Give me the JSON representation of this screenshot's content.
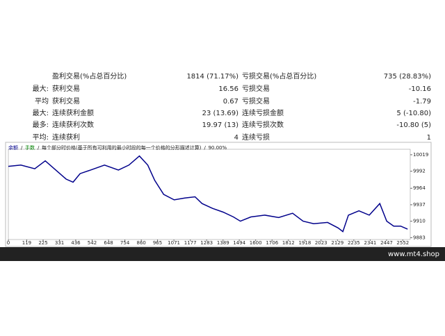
{
  "table": {
    "rows": [
      [
        "盈利交易(%占总百分比)",
        "1814 (71.17%)",
        "亏损交易(%占总百分比)",
        "735 (28.83%)"
      ],
      [
        "最大:",
        "获利交易",
        "16.56",
        "亏损交易",
        "-10.16"
      ],
      [
        "平均",
        "获利交易",
        "0.67",
        "亏损交易",
        "-1.79"
      ],
      [
        "最大:",
        "连续获利金额",
        "23 (13.69)",
        "连续亏损金额",
        "5 (-10.80)"
      ],
      [
        "最多:",
        "连续获利次数",
        "19.97 (13)",
        "连续亏损次数",
        "-10.80 (5)"
      ],
      [
        "平均:",
        "连续获利",
        "4",
        "连续亏损",
        "1"
      ]
    ]
  },
  "chart_data": {
    "type": "line",
    "legend": [
      "余额",
      "手数",
      "每个部分时价格(基于所有可利用的最小时段的每一个价格的分形描述计算)",
      "90.00%"
    ],
    "x": [
      0,
      81,
      171,
      239,
      307,
      374,
      419,
      464,
      532,
      622,
      712,
      780,
      848,
      902,
      947,
      1005,
      1073,
      1141,
      1208,
      1253,
      1321,
      1389,
      1456,
      1501,
      1569,
      1659,
      1749,
      1839,
      1907,
      1975,
      2065,
      2133,
      2164,
      2200,
      2268,
      2335,
      2403,
      2448,
      2493,
      2538,
      2583
    ],
    "series": [
      {
        "name": "余额",
        "color": "#00008b",
        "values": [
          10000,
          10002,
          9996,
          10009,
          9994,
          9979,
          9974,
          9988,
          9994,
          10002,
          9994,
          10002,
          10017,
          10002,
          9977,
          9954,
          9945,
          9948,
          9950,
          9939,
          9931,
          9925,
          9917,
          9910,
          9917,
          9920,
          9916,
          9923,
          9910,
          9906,
          9908,
          9899,
          9893,
          9920,
          9927,
          9920,
          9939,
          9910,
          9902,
          9902,
          9897
        ]
      }
    ],
    "xlim": [
      0,
      2600
    ],
    "ylim": [
      9880,
      10028
    ],
    "xticks": [
      0,
      119,
      225,
      331,
      436,
      542,
      648,
      754,
      860,
      965,
      1071,
      1177,
      1283,
      1389,
      1494,
      1600,
      1706,
      1812,
      1918,
      2023,
      2129,
      2235,
      2341,
      2447,
      2552
    ],
    "yticks": [
      10019,
      9992,
      9964,
      9937,
      9910,
      9883
    ]
  },
  "footer": "www.mt4.shop"
}
